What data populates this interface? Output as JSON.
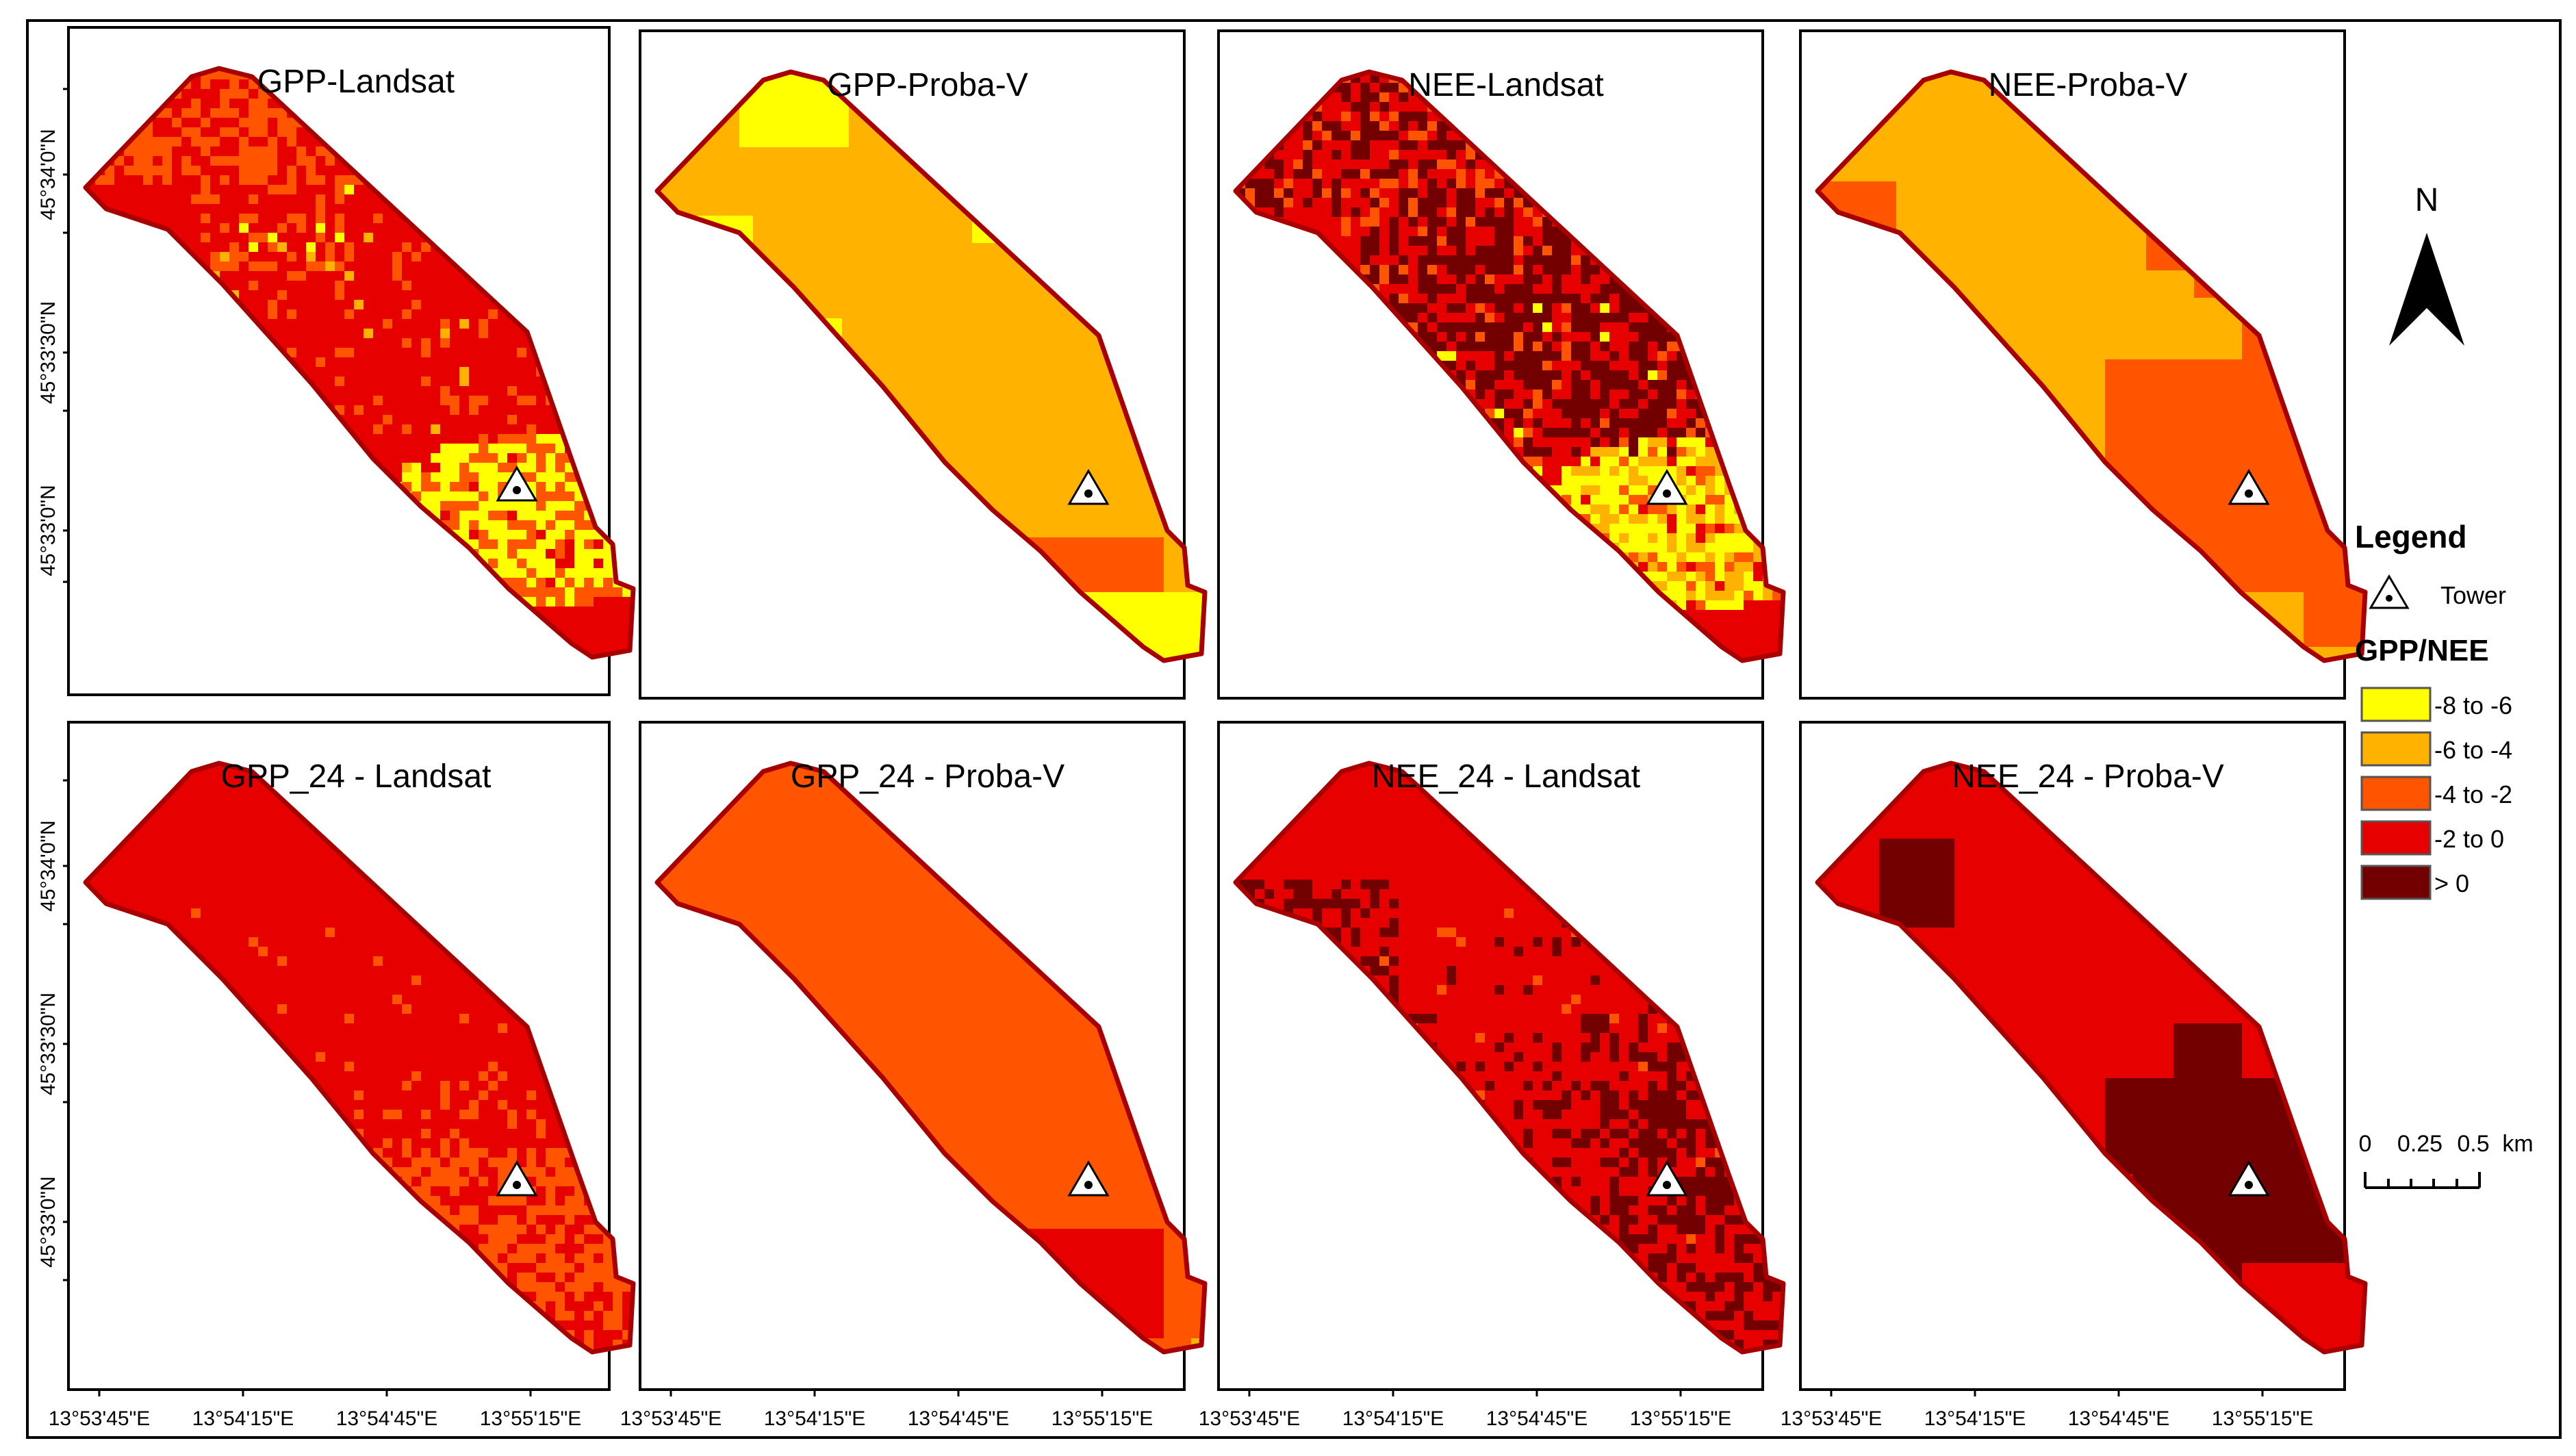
{
  "palette": {
    "c1": "#ffff00",
    "c2": "#ffb200",
    "c3": "#ff5500",
    "c4": "#e60000",
    "c5": "#730000",
    "outline": "#a80000",
    "frame": "#000000"
  },
  "panels": [
    {
      "title": "GPP-Landsat",
      "fill": "c4",
      "pattern": "gpp_landsat"
    },
    {
      "title": "GPP-Proba-V",
      "fill": "c2",
      "pattern": "gpp_proba"
    },
    {
      "title": "NEE-Landsat",
      "fill": "c4",
      "pattern": "nee_landsat"
    },
    {
      "title": "NEE-Proba-V",
      "fill": "c2",
      "pattern": "nee_proba"
    },
    {
      "title": "GPP_24 - Landsat",
      "fill": "c4",
      "pattern": "gpp24_landsat"
    },
    {
      "title": "GPP_24 - Proba-V",
      "fill": "c3",
      "pattern": "gpp24_proba"
    },
    {
      "title": "NEE_24 - Landsat",
      "fill": "c4",
      "pattern": "nee24_landsat"
    },
    {
      "title": "NEE_24 - Proba-V",
      "fill": "c4",
      "pattern": "nee24_proba"
    }
  ],
  "axes": {
    "lat_ticks": [
      "45°34'0\"N",
      "45°33'30\"N",
      "45°33'0\"N"
    ],
    "lon_ticks": [
      "13°53'45\"E",
      "13°54'15\"E",
      "13°54'45\"E",
      "13°55'15\"E"
    ]
  },
  "north": {
    "label": "N"
  },
  "legend": {
    "title": "Legend",
    "tower_label": "Tower",
    "subtitle": "GPP/NEE",
    "classes": [
      {
        "label": "-8 to -6",
        "color": "c1"
      },
      {
        "label": "-6 to -4",
        "color": "c2"
      },
      {
        "label": "-4 to -2",
        "color": "c3"
      },
      {
        "label": "-2 to 0",
        "color": "c4"
      },
      {
        "label": "> 0",
        "color": "c5"
      }
    ]
  },
  "scalebar": {
    "label0": "0",
    "label1": "0.25",
    "label2": "0.5",
    "unit": "km"
  }
}
